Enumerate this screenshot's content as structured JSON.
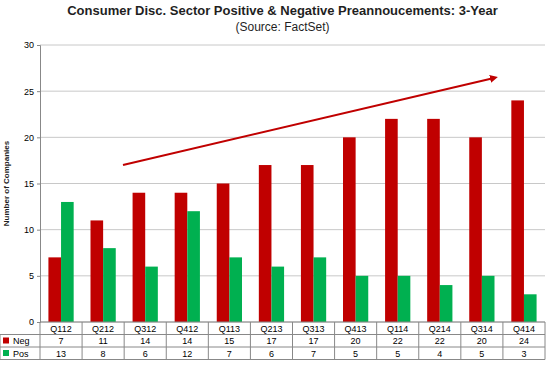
{
  "chart_data": {
    "type": "bar",
    "title": "Consumer Disc. Sector Positive & Negative Preannoucements: 3-Year",
    "subtitle": "(Source: FactSet)",
    "y_label": "Number of Companies",
    "categories": [
      "Q112",
      "Q212",
      "Q312",
      "Q412",
      "Q113",
      "Q213",
      "Q313",
      "Q413",
      "Q114",
      "Q214",
      "Q314",
      "Q414"
    ],
    "series": [
      {
        "name": "Neg",
        "color": "#c00000",
        "values": [
          7,
          11,
          14,
          14,
          15,
          17,
          17,
          20,
          22,
          22,
          20,
          24
        ]
      },
      {
        "name": "Pos",
        "color": "#00b050",
        "values": [
          13,
          8,
          6,
          12,
          7,
          6,
          7,
          5,
          5,
          4,
          5,
          3
        ]
      }
    ],
    "ylim": [
      0,
      30
    ],
    "yticks": [
      0,
      5,
      10,
      15,
      20,
      25,
      30
    ],
    "grid": true
  }
}
